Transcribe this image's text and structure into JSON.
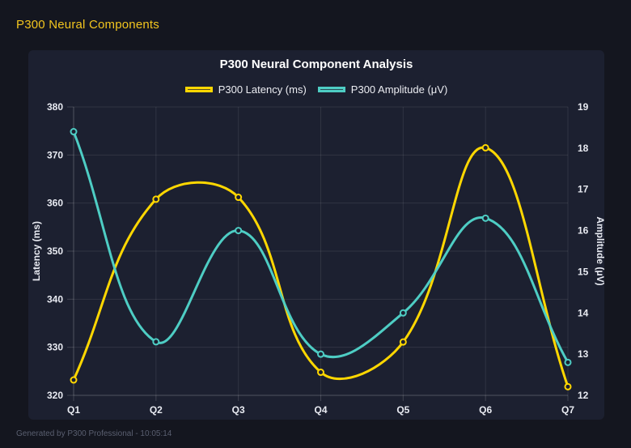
{
  "header": {
    "title": "P300 Neural Components"
  },
  "footer": {
    "text": "Generated by P300 Professional - 10:05:14"
  },
  "colors": {
    "page_bg": "#14161F",
    "panel_bg": "#1C2030",
    "accent_yellow": "#FFD700",
    "accent_teal": "#4ECDC4",
    "grid_line": "rgba(255,255,255,0.09)",
    "axis_border": "rgba(255,255,255,0.16)",
    "tick_text": "#E9EBF2",
    "title_text": "#FFFFFF",
    "header_text": "#F2C51F",
    "footer_text": "#5A5F70"
  },
  "chart_data": {
    "type": "line",
    "title": "P300 Neural Component Analysis",
    "categories": [
      "Q1",
      "Q2",
      "Q3",
      "Q4",
      "Q5",
      "Q6",
      "Q7"
    ],
    "series": [
      {
        "name": "P300 Latency (ms)",
        "axis": "left",
        "color": "#FFD700",
        "fill_alpha": 0.25,
        "values": [
          323.2,
          360.8,
          361.2,
          324.8,
          331.1,
          371.5,
          321.8
        ]
      },
      {
        "name": "P300 Amplitude (μV)",
        "axis": "right",
        "color": "#4ECDC4",
        "fill_alpha": 0.25,
        "values": [
          18.4,
          13.3,
          16.0,
          13.0,
          14.0,
          16.3,
          12.8
        ]
      }
    ],
    "left_axis": {
      "label": "Latency (ms)",
      "min": 320,
      "max": 380,
      "step": 10
    },
    "right_axis": {
      "label": "Amplitude (μV)",
      "min": 12,
      "max": 19,
      "step": 1
    },
    "grid": true,
    "legend_position": "top",
    "line_tension": 0.4,
    "line_width": 3,
    "point_radius": 3.5
  }
}
